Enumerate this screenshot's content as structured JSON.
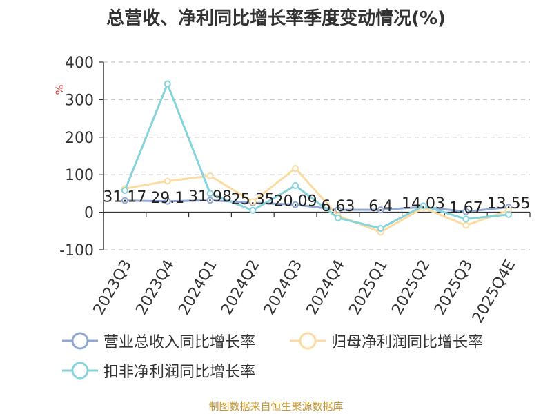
{
  "chart_data": {
    "type": "line",
    "title": "总营收、净利同比增长率季度变动情况(%)",
    "ylabel": "%",
    "ylim": [
      -100,
      400
    ],
    "yticks": [
      -100,
      0,
      100,
      200,
      300,
      400
    ],
    "grid": true,
    "legend_position": "bottom",
    "categories": [
      "2023Q3",
      "2023Q4",
      "2024Q1",
      "2024Q2",
      "2024Q3",
      "2024Q4",
      "2025Q1",
      "2025Q2",
      "2025Q3",
      "2025Q4E"
    ],
    "series": [
      {
        "name": "营业总收入同比增长率",
        "color": "#8fa9d4",
        "values": [
          31.17,
          29.1,
          31.98,
          25.35,
          20.09,
          6.63,
          6.4,
          14.03,
          1.67,
          13.55
        ],
        "labels": [
          "31.17",
          "29.1",
          "31.98",
          "25.35",
          "20.09",
          "6.63",
          "6.4",
          "14.03",
          "1.67",
          "13.55"
        ]
      },
      {
        "name": "归母净利润同比增长率",
        "color": "#fcdba0",
        "values": [
          63,
          83,
          97,
          28,
          117,
          -9,
          -53,
          12,
          -35,
          5
        ]
      },
      {
        "name": "扣非净利润同比增长率",
        "color": "#86d3d9",
        "values": [
          58,
          342,
          50,
          5,
          71,
          -15,
          -43,
          17,
          -18,
          -6
        ]
      }
    ]
  },
  "footer": {
    "text": "制图数据来自恒生聚源数据库",
    "color": "#c8962e"
  }
}
